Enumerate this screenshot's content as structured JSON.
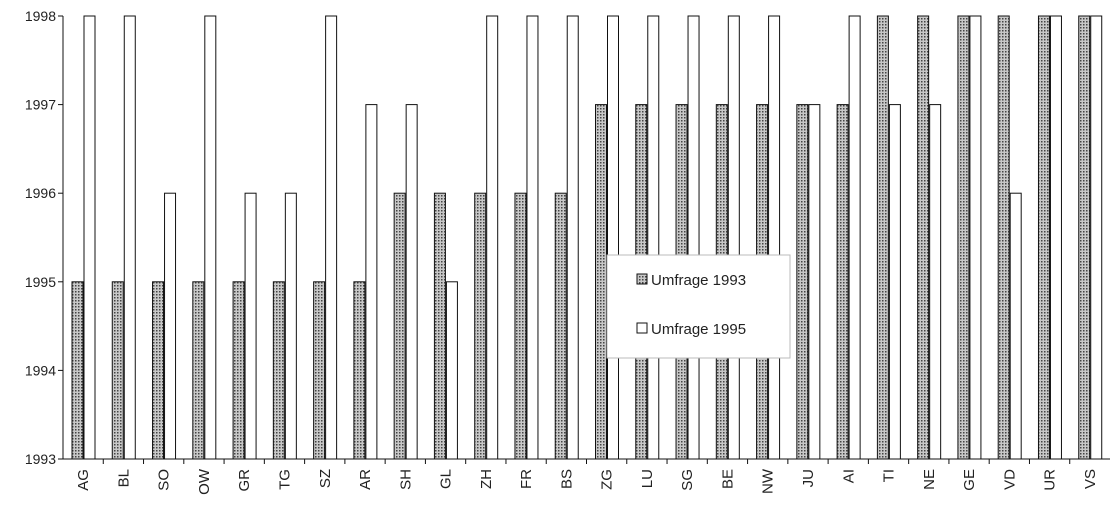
{
  "chart_data": {
    "type": "bar",
    "categories": [
      "AG",
      "BL",
      "SO",
      "OW",
      "GR",
      "TG",
      "SZ",
      "AR",
      "SH",
      "GL",
      "ZH",
      "FR",
      "BS",
      "ZG",
      "LU",
      "SG",
      "BE",
      "NW",
      "JU",
      "AI",
      "TI",
      "NE",
      "GE",
      "VD",
      "UR",
      "VS"
    ],
    "series": [
      {
        "name": "Umfrage 1993",
        "values": [
          1995,
          1995,
          1995,
          1995,
          1995,
          1995,
          1995,
          1995,
          1996,
          1996,
          1996,
          1996,
          1996,
          1997,
          1997,
          1997,
          1997,
          1997,
          1997,
          1997,
          1998,
          1998,
          1998,
          1998,
          1998,
          1998
        ]
      },
      {
        "name": "Umfrage 1995",
        "values": [
          1998,
          1998,
          1996,
          1998,
          1996,
          1996,
          1998,
          1997,
          1997,
          1995,
          1998,
          1998,
          1998,
          1998,
          1998,
          1998,
          1998,
          1998,
          1997,
          1998,
          1997,
          1997,
          1998,
          1996,
          1998,
          1998
        ]
      }
    ],
    "ylim": [
      1993,
      1998
    ],
    "yticks": [
      "1993",
      "1994",
      "1995",
      "1996",
      "1997",
      "1998"
    ],
    "legend": {
      "position": "center",
      "entries": [
        "Umfrage 1993",
        "Umfrage 1995"
      ]
    },
    "colors": {
      "series1_fill": "#8a8a8a",
      "series2_fill": "#ffffff",
      "stroke": "#111111"
    },
    "grid": false
  }
}
